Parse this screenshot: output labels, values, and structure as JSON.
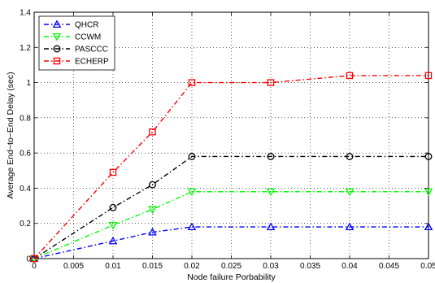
{
  "chart_data": {
    "type": "line",
    "xlabel": "Node failure Porbability",
    "ylabel": "Average End−to−End Delay (sec)",
    "xlim": [
      0,
      0.05
    ],
    "ylim": [
      0,
      1.4
    ],
    "xticks": [
      "0",
      "0.005",
      "0.01",
      "0.015",
      "0.02",
      "0.025",
      "0.03",
      "0.035",
      "0.04",
      "0.045",
      "0.05"
    ],
    "yticks": [
      "0",
      "0.2",
      "0.4",
      "0.6",
      "0.8",
      "1",
      "1.2",
      "1.4"
    ],
    "grid": true,
    "legend_position": "top-left",
    "x": [
      0,
      0.01,
      0.015,
      0.02,
      0.03,
      0.04,
      0.05
    ],
    "series": [
      {
        "name": "QHCR",
        "values": [
          0,
          0.1,
          0.15,
          0.18,
          0.18,
          0.18,
          0.18
        ],
        "color": "#0000ff",
        "marker": "triangle-up"
      },
      {
        "name": "CCWM",
        "values": [
          0,
          0.19,
          0.28,
          0.38,
          0.38,
          0.38,
          0.38
        ],
        "color": "#00ff00",
        "marker": "triangle-down"
      },
      {
        "name": "PASCCC",
        "values": [
          0,
          0.29,
          0.42,
          0.58,
          0.58,
          0.58,
          0.58
        ],
        "color": "#000000",
        "marker": "circle"
      },
      {
        "name": "ECHERP",
        "values": [
          0,
          0.49,
          0.72,
          1.0,
          1.0,
          1.04,
          1.04
        ],
        "color": "#ff0000",
        "marker": "square"
      }
    ]
  }
}
